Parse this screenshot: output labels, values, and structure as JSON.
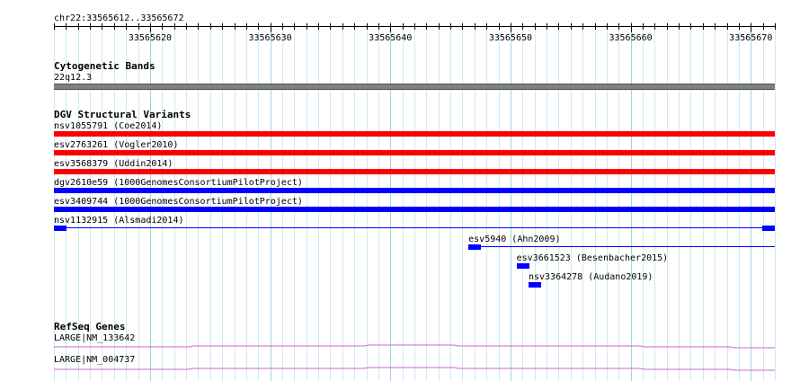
{
  "location": "chr22:33565612..33565672",
  "ruler": {
    "start": 33565612,
    "end": 33565672,
    "ticks": [
      "33565620",
      "33565630",
      "33565640",
      "33565650",
      "33565660",
      "33565670"
    ]
  },
  "cytoband": {
    "title": "Cytogenetic Bands",
    "band": "22q12.3",
    "color": "#808080"
  },
  "dgv": {
    "title": "DGV Structural Variants",
    "colors": {
      "loss": "#ff0000",
      "gain": "#0000ff"
    },
    "features": [
      {
        "label": "nsv1055791 (Coe2014)",
        "type": "loss",
        "start": 33565612,
        "end": 33565672
      },
      {
        "label": "esv2763261 (Vogler2010)",
        "type": "loss",
        "start": 33565612,
        "end": 33565672
      },
      {
        "label": "esv3568379 (Uddin2014)",
        "type": "loss",
        "start": 33565612,
        "end": 33565672
      },
      {
        "label": "dgv2610e59 (1000GenomesConsortiumPilotProject)",
        "type": "gain",
        "start": 33565612,
        "end": 33565672
      },
      {
        "label": "esv3409744 (1000GenomesConsortiumPilotProject)",
        "type": "gain",
        "start": 33565612,
        "end": 33565672
      },
      {
        "label": "nsv1132915 (Alsmadi2014)",
        "type": "gain-split",
        "start": 33565612,
        "end": 33565672
      },
      {
        "label": "esv5940 (Ahn2009)",
        "type": "gain-split",
        "start": 33565646.5,
        "end": 33565672
      },
      {
        "label": "esv3661523 (Besenbacher2015)",
        "type": "gain-small",
        "start": 33565650.5,
        "end": 33565651.5
      },
      {
        "label": "nsv3364278 (Audano2019)",
        "type": "gain-small",
        "start": 33565651.5,
        "end": 33565652.5
      }
    ]
  },
  "refseq": {
    "title": "RefSeq Genes",
    "color": "#cc66cc",
    "genes": [
      {
        "label": "LARGE|NM_133642"
      },
      {
        "label": "LARGE|NM_004737"
      }
    ]
  }
}
